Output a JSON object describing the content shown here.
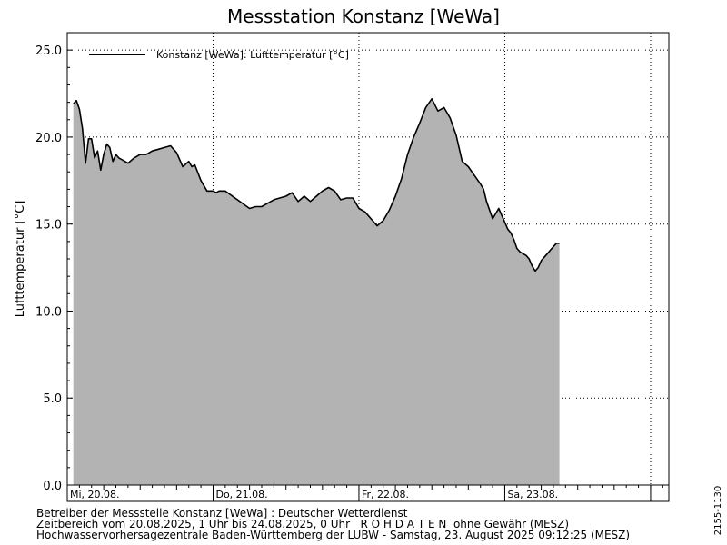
{
  "chart_data": {
    "type": "area",
    "title": "Messstation Konstanz [WeWa]",
    "ylabel": "Lufttemperatur [°C]",
    "xlabel": "",
    "ylim": [
      0,
      26
    ],
    "xlim": [
      0,
      99
    ],
    "x_unit": "hours since Mi, 20.08. 00:00",
    "grid": true,
    "legend_position": "top-left",
    "y_ticks": [
      0,
      5,
      10,
      15,
      20,
      25
    ],
    "y_tick_labels": [
      "0.0",
      "5.0",
      "10.0",
      "15.0",
      "20.0",
      "25.0"
    ],
    "x_ticks": [
      0,
      24,
      48,
      72
    ],
    "x_tick_labels": [
      "Mi, 20.08.",
      "Do, 21.08.",
      "Fr, 22.08.",
      "Sa, 23.08."
    ],
    "colors": {
      "fill": "#b3b3b3",
      "line": "#000000",
      "grid": "#000000"
    },
    "series": [
      {
        "name": "Konstanz [WeWa]: Lufttemperatur  [°C]",
        "x": [
          1,
          1.5,
          2,
          2.5,
          3,
          3.5,
          4,
          4.5,
          5,
          5.5,
          6,
          6.5,
          7,
          7.5,
          8,
          8.5,
          9,
          10,
          11,
          12,
          13,
          14,
          15,
          16,
          17,
          18,
          19,
          20,
          20.5,
          21,
          22,
          23,
          24,
          24.5,
          25,
          26,
          28,
          30,
          31,
          32,
          33,
          34,
          36,
          37,
          38,
          39,
          40,
          41,
          42,
          43,
          44,
          45,
          46,
          47,
          48,
          49,
          50,
          51,
          52,
          53,
          54,
          55,
          56,
          57,
          58,
          59,
          60,
          61,
          62,
          63,
          64,
          65,
          66,
          67,
          68,
          68.5,
          69,
          70,
          71,
          72,
          72.5,
          73,
          73.5,
          74,
          74.5,
          75,
          75.5,
          76,
          76.5,
          77,
          77.5,
          78,
          79,
          79.5,
          80,
          80.5,
          81
        ],
        "values": [
          21.9,
          22.1,
          21.6,
          20.5,
          18.5,
          19.9,
          19.9,
          18.8,
          19.2,
          18.1,
          19.0,
          19.6,
          19.4,
          18.6,
          19.0,
          18.8,
          18.7,
          18.5,
          18.8,
          19.0,
          19.0,
          19.2,
          19.3,
          19.4,
          19.5,
          19.1,
          18.3,
          18.6,
          18.3,
          18.4,
          17.5,
          16.9,
          16.9,
          16.8,
          16.9,
          16.9,
          16.4,
          15.9,
          16.0,
          16.0,
          16.2,
          16.4,
          16.6,
          16.8,
          16.3,
          16.6,
          16.3,
          16.6,
          16.9,
          17.1,
          16.9,
          16.4,
          16.5,
          16.5,
          15.9,
          15.7,
          15.3,
          14.9,
          15.2,
          15.8,
          16.6,
          17.6,
          19.0,
          20.0,
          20.8,
          21.7,
          22.2,
          21.5,
          21.7,
          21.1,
          20.1,
          18.6,
          18.3,
          17.8,
          17.3,
          17.0,
          16.3,
          15.3,
          15.9,
          15.1,
          14.7,
          14.5,
          14.1,
          13.6,
          13.4,
          13.3,
          13.2,
          13.0,
          12.6,
          12.3,
          12.5,
          12.9,
          13.3,
          13.5,
          13.7,
          13.9,
          13.9
        ]
      }
    ]
  },
  "side_code": "2155-1130",
  "footer": {
    "line1": "Betreiber der Messstelle Konstanz [WeWa] : Deutscher Wetterdienst",
    "line2": "Zeitbereich vom 20.08.2025, 1 Uhr bis 24.08.2025, 0 Uhr   R O H D A T E N  ohne Gewähr (MESZ)",
    "line3": "Hochwasservorhersagezentrale Baden-Württemberg der LUBW - Samstag, 23. August 2025 09:12:25 (MESZ)"
  }
}
